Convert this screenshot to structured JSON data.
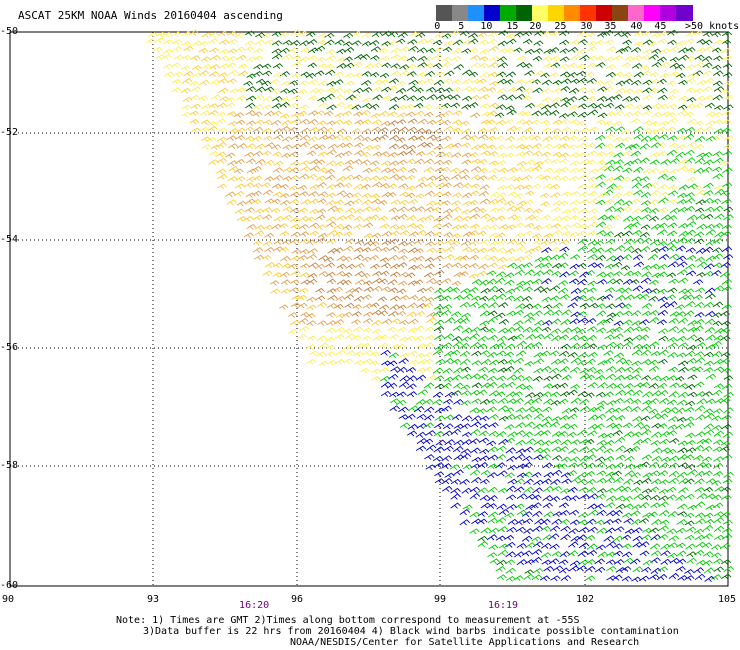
{
  "title": "ASCAT 25KM NOAA Winds 20160404 ascending",
  "scale": {
    "labels": [
      "0",
      "5",
      "10",
      "15",
      "20",
      "25",
      "30",
      "35",
      "40",
      "45",
      ">50 knots"
    ],
    "colors": [
      "#555555",
      "#888888",
      "#1e90ff",
      "#0000cc",
      "#00aa00",
      "#006400",
      "#ffff66",
      "#ffd700",
      "#ff8c00",
      "#ff3300",
      "#cc0000",
      "#8b4513",
      "#ff66cc",
      "#ff00ff",
      "#b000e0",
      "#7000cc"
    ]
  },
  "axes": {
    "lat_labels": [
      "-50",
      "-52",
      "-54",
      "-56",
      "-58",
      "-60"
    ],
    "lon_labels": [
      "90",
      "93",
      "96",
      "99",
      "102",
      "105"
    ],
    "time_labels": [
      {
        "text": "16:20",
        "lon": 95.1
      },
      {
        "text": "16:19",
        "lon": 100.3
      }
    ]
  },
  "wind_colors": {
    "lt15_blue": "#0000cc",
    "15_20_green": "#00cc00",
    "15_20_dkgreen": "#006400",
    "20_25_yellow": "#ffee55",
    "25_30_gold": "#ffcc33",
    "30_35_orange": "#e0a050",
    "35_40_brown": "#c08040",
    "contaminated": "#000000"
  },
  "notes": {
    "line1": "Note: 1) Times are GMT 2)Times along bottom correspond to measurement at -55S",
    "line2": "3)Data buffer is 22 hrs from 20160404 4) Black wind barbs indicate possible contamination",
    "line3": "NOAA/NESDIS/Center for Satellite Applications and Research"
  }
}
